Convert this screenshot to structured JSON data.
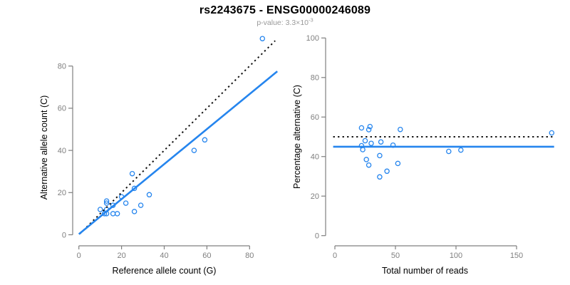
{
  "header": {
    "title": "rs2243675 - ENSG00000246089",
    "subtitle_text": "p-value: 3.3×10",
    "subtitle_exponent": "-3"
  },
  "colors": {
    "point_blue": "#2585ee",
    "line_blue": "#2585ee",
    "dotted_black": "#111111",
    "axis_gray": "#7f7f7f",
    "tick_label_gray": "#7f7f7f",
    "title_black": "#000000",
    "subtitle_gray": "#999999",
    "background": "#ffffff"
  },
  "chart_data": [
    {
      "type": "scatter",
      "name": "allele-counts-scatter",
      "xlabel": "Reference allele count (G)",
      "ylabel": "Alternative allele count (C)",
      "xticks": [
        0,
        20,
        40,
        60,
        80
      ],
      "yticks": [
        0,
        20,
        40,
        60,
        80
      ],
      "xlim": [
        0,
        93
      ],
      "ylim": [
        0,
        94
      ],
      "grid": false,
      "legend": "none",
      "points": [
        [
          86,
          93
        ],
        [
          59,
          45
        ],
        [
          54,
          40
        ],
        [
          25,
          29
        ],
        [
          26,
          22
        ],
        [
          20,
          18
        ],
        [
          33,
          19
        ],
        [
          13,
          16
        ],
        [
          13,
          15
        ],
        [
          22,
          15
        ],
        [
          29,
          14
        ],
        [
          16,
          14
        ],
        [
          10,
          12
        ],
        [
          13,
          12
        ],
        [
          26,
          11
        ],
        [
          12,
          10
        ],
        [
          13,
          10
        ],
        [
          16,
          10
        ],
        [
          18,
          10
        ]
      ],
      "lines": [
        {
          "name": "identity-line",
          "style": "dotted",
          "color": "#111111",
          "from": [
            0.5,
            0.5
          ],
          "to": [
            92,
            92
          ]
        },
        {
          "name": "regression-line",
          "style": "solid",
          "color": "#2585ee",
          "from": [
            0,
            0.3
          ],
          "to": [
            93,
            77.5
          ]
        }
      ]
    },
    {
      "type": "scatter",
      "name": "percentage-vs-reads-scatter",
      "xlabel": "Total number of reads",
      "ylabel": "Percentage alternative (C)",
      "xticks": [
        0,
        50,
        100,
        150
      ],
      "yticks": [
        0,
        20,
        40,
        60,
        80,
        100
      ],
      "xlim": [
        0,
        181
      ],
      "ylim": [
        0,
        100
      ],
      "grid": false,
      "legend": "none",
      "points": [
        [
          179,
          52.0
        ],
        [
          104,
          43.3
        ],
        [
          94,
          42.6
        ],
        [
          54,
          53.7
        ],
        [
          48,
          45.8
        ],
        [
          38,
          47.4
        ],
        [
          52,
          36.5
        ],
        [
          29,
          55.2
        ],
        [
          28,
          53.6
        ],
        [
          37,
          40.5
        ],
        [
          43,
          32.6
        ],
        [
          30,
          46.7
        ],
        [
          22,
          54.5
        ],
        [
          25,
          48.0
        ],
        [
          37,
          29.7
        ],
        [
          22,
          45.5
        ],
        [
          23,
          43.5
        ],
        [
          26,
          38.5
        ],
        [
          28,
          35.7
        ]
      ],
      "lines": [
        {
          "name": "fifty-percent-line",
          "style": "dotted",
          "color": "#111111",
          "from": [
            -1.4,
            50
          ],
          "to": [
            181,
            50
          ]
        },
        {
          "name": "mean-percentage-line",
          "style": "solid",
          "color": "#2585ee",
          "from": [
            -1.4,
            45
          ],
          "to": [
            181,
            45
          ]
        }
      ]
    }
  ]
}
